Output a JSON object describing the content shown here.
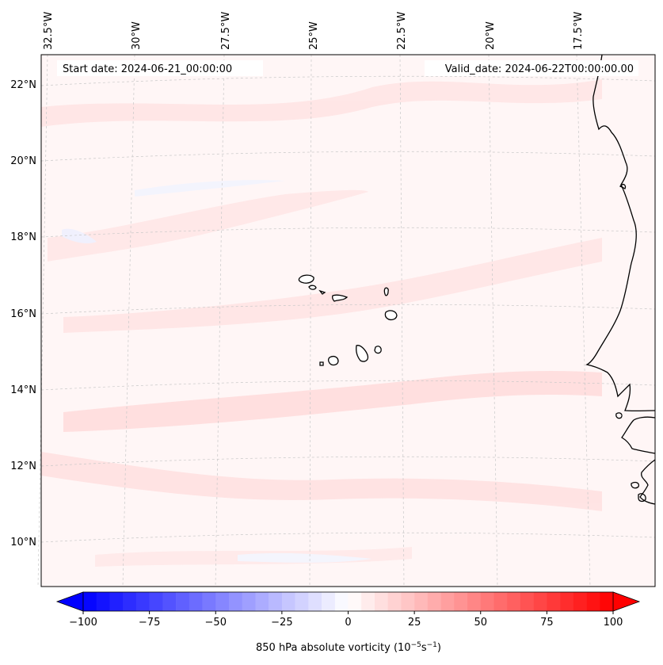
{
  "map": {
    "start_label": "Start date: 2024-06-21_00:00:00",
    "valid_label": "Valid_date: 2024-06-22T00:00:00.00",
    "lon_labels": [
      "32.5°W",
      "30°W",
      "27.5°W",
      "25°W",
      "22.5°W",
      "20°W",
      "17.5°W"
    ],
    "lat_labels": [
      "22°N",
      "20°N",
      "18°N",
      "16°N",
      "14°N",
      "12°N",
      "10°N"
    ],
    "background_color": "#fff6f6",
    "land_outline_color": "#000000",
    "grid_color": "#c8c8c8"
  },
  "colorbar": {
    "label_main": "850 hPa absolute vorticity (10",
    "label_exp1": "−5",
    "label_mid": "s",
    "label_exp2": "−1",
    "label_end": ")",
    "min": -100,
    "max": 100,
    "levels": 40,
    "tick_values": [
      -100,
      -75,
      -50,
      -25,
      0,
      25,
      50,
      75,
      100
    ],
    "tick_labels": [
      "−100",
      "−75",
      "−50",
      "−25",
      "0",
      "25",
      "50",
      "75",
      "100"
    ],
    "color_negative": "#0000ff",
    "color_positive": "#ff0000"
  }
}
